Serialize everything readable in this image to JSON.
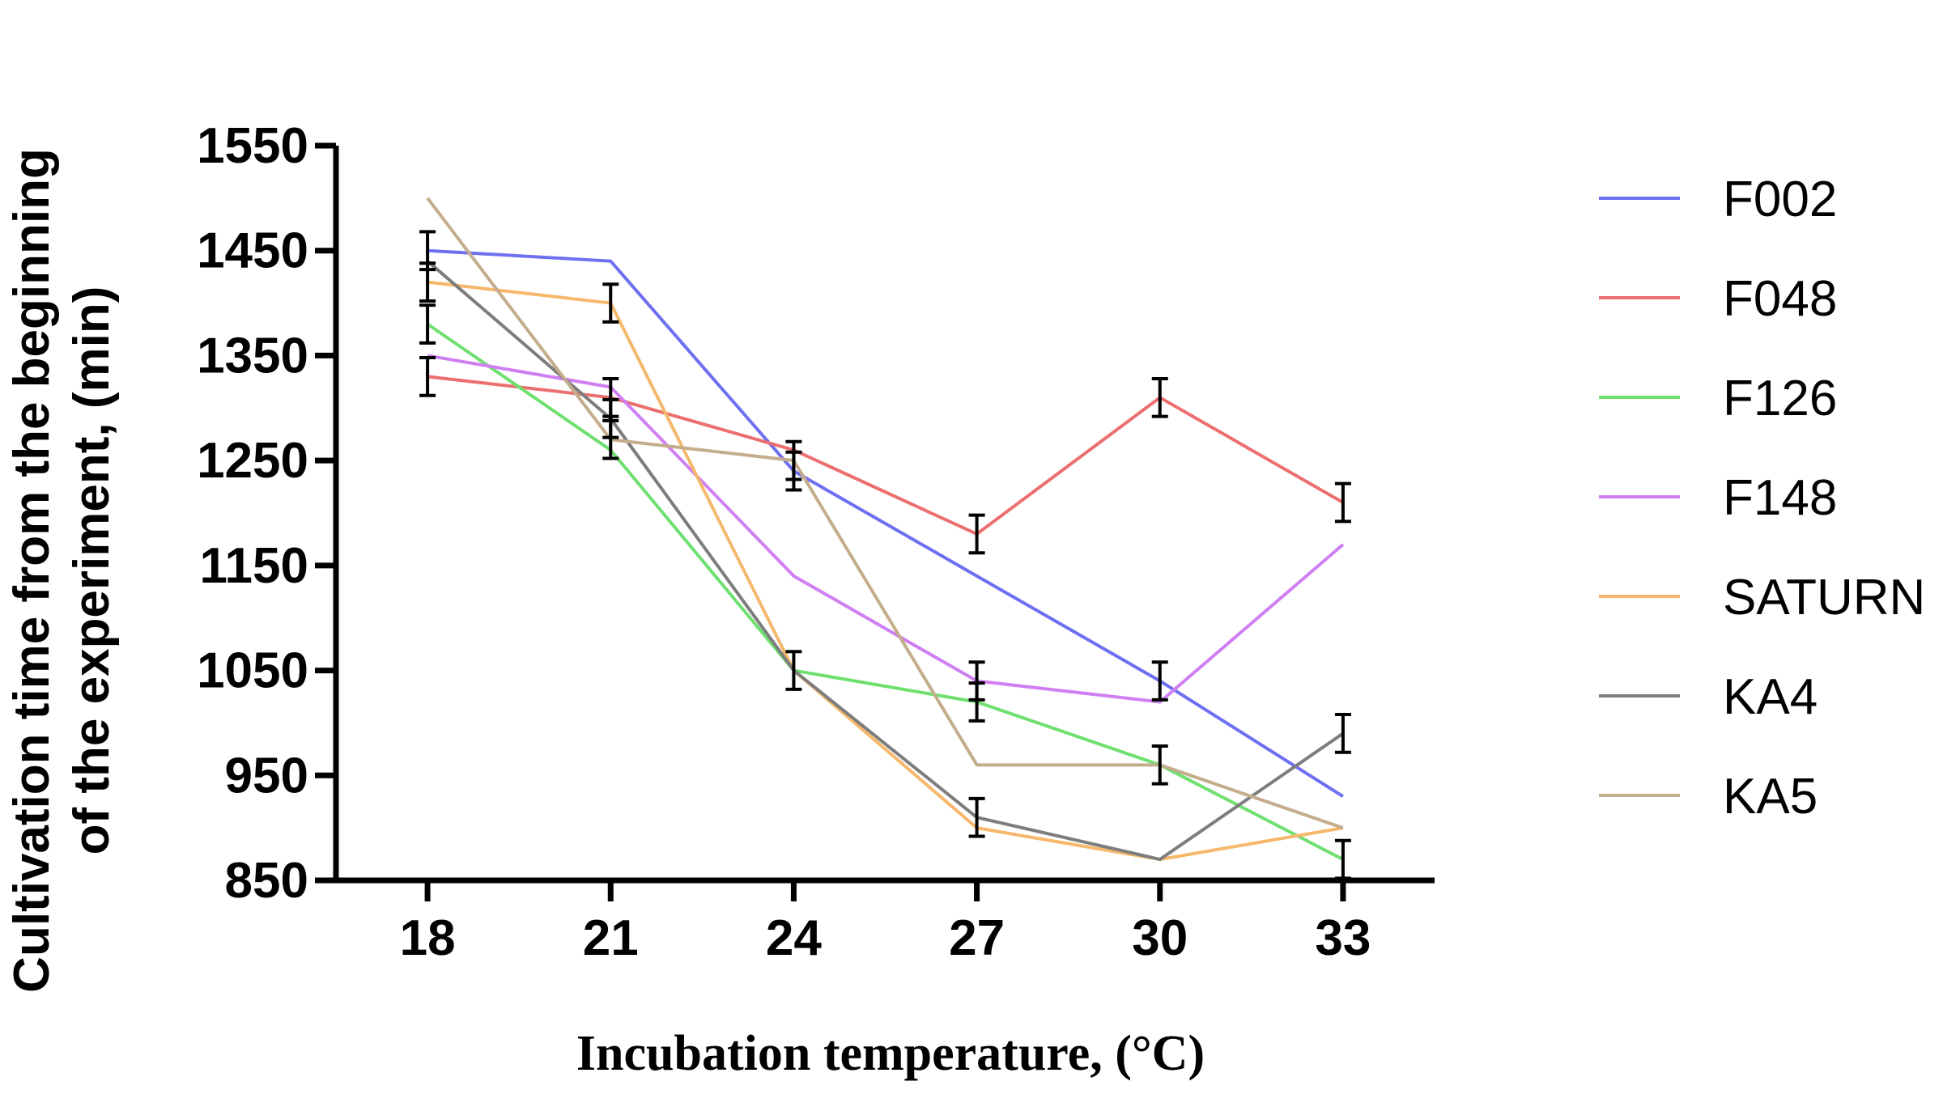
{
  "chart_data": {
    "type": "line",
    "xlabel": "Incubation temperature, (°C)",
    "ylabel_lines": [
      "Cultivation time from the beginning",
      "of the experiment, (min)"
    ],
    "x": [
      18,
      21,
      24,
      27,
      30,
      33
    ],
    "x_tick_labels": [
      "18",
      "21",
      "24",
      "27",
      "30",
      "33"
    ],
    "y_ticks": [
      850,
      950,
      1050,
      1150,
      1250,
      1350,
      1450,
      1550
    ],
    "y_tick_labels": [
      "850",
      "950",
      "1050",
      "1150",
      "1250",
      "1350",
      "1450",
      "1550"
    ],
    "ylim": [
      850,
      1550
    ],
    "xlim": [
      16.5,
      34.5
    ],
    "grid": false,
    "legend_position": "right",
    "series": [
      {
        "name": "F002",
        "color": "#6f6ff2",
        "values": [
          1450,
          1440,
          1240,
          1140,
          1040,
          930
        ]
      },
      {
        "name": "F048",
        "color": "#ec6f6f",
        "values": [
          1330,
          1310,
          1260,
          1180,
          1310,
          1210
        ]
      },
      {
        "name": "F126",
        "color": "#6fe06f",
        "values": [
          1380,
          1260,
          1050,
          1020,
          960,
          870
        ]
      },
      {
        "name": "F148",
        "color": "#cf7ff2",
        "values": [
          1350,
          1320,
          1140,
          1040,
          1020,
          1170
        ]
      },
      {
        "name": "SATURN",
        "color": "#f6b86c",
        "values": [
          1420,
          1400,
          1050,
          900,
          870,
          900
        ]
      },
      {
        "name": "KA4",
        "color": "#7d7d7d",
        "values": [
          1440,
          1290,
          1050,
          910,
          870,
          990
        ]
      },
      {
        "name": "KA5",
        "color": "#c4ad8c",
        "values": [
          1500,
          1270,
          1250,
          960,
          960,
          900
        ]
      }
    ],
    "error_bars": [
      {
        "x": 18,
        "y": 1450,
        "err": 18
      },
      {
        "x": 18,
        "y": 1420,
        "err": 18
      },
      {
        "x": 18,
        "y": 1380,
        "err": 18
      },
      {
        "x": 18,
        "y": 1330,
        "err": 18
      },
      {
        "x": 21,
        "y": 1400,
        "err": 18
      },
      {
        "x": 21,
        "y": 1310,
        "err": 18
      },
      {
        "x": 21,
        "y": 1290,
        "err": 18
      },
      {
        "x": 21,
        "y": 1270,
        "err": 18
      },
      {
        "x": 24,
        "y": 1250,
        "err": 18
      },
      {
        "x": 24,
        "y": 1240,
        "err": 18
      },
      {
        "x": 24,
        "y": 1050,
        "err": 18
      },
      {
        "x": 27,
        "y": 1180,
        "err": 18
      },
      {
        "x": 27,
        "y": 1040,
        "err": 18
      },
      {
        "x": 27,
        "y": 1020,
        "err": 18
      },
      {
        "x": 27,
        "y": 910,
        "err": 18
      },
      {
        "x": 30,
        "y": 1310,
        "err": 18
      },
      {
        "x": 30,
        "y": 1040,
        "err": 18
      },
      {
        "x": 30,
        "y": 960,
        "err": 18
      },
      {
        "x": 33,
        "y": 1210,
        "err": 18
      },
      {
        "x": 33,
        "y": 990,
        "err": 18
      },
      {
        "x": 33,
        "y": 870,
        "err": 18
      }
    ]
  }
}
